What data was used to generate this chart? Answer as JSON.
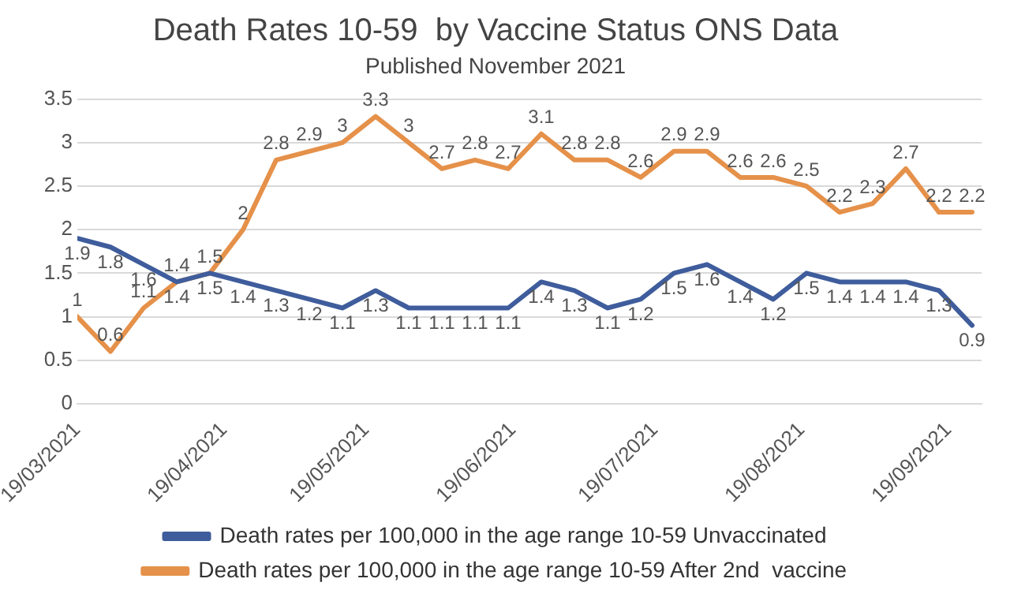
{
  "chart_data": {
    "type": "line",
    "title": "Death Rates 10-59  by Vaccine Status ONS Data",
    "subtitle": "Published November 2021",
    "x": [
      "2021-03-19",
      "2021-03-26",
      "2021-04-02",
      "2021-04-09",
      "2021-04-16",
      "2021-04-23",
      "2021-04-30",
      "2021-05-07",
      "2021-05-14",
      "2021-05-21",
      "2021-05-28",
      "2021-06-04",
      "2021-06-11",
      "2021-06-18",
      "2021-06-25",
      "2021-07-02",
      "2021-07-09",
      "2021-07-16",
      "2021-07-23",
      "2021-07-30",
      "2021-08-06",
      "2021-08-13",
      "2021-08-20",
      "2021-08-27",
      "2021-09-03",
      "2021-09-10",
      "2021-09-17",
      "2021-09-24"
    ],
    "series": [
      {
        "name": "Death rates per 100,000 in the age range 10-59 Unvaccinated",
        "color": "#3f5d9c",
        "values": [
          1.9,
          1.8,
          1.6,
          1.4,
          1.5,
          1.4,
          1.3,
          1.2,
          1.1,
          1.3,
          1.1,
          1.1,
          1.1,
          1.1,
          1.4,
          1.3,
          1.1,
          1.2,
          1.5,
          1.6,
          1.4,
          1.2,
          1.5,
          1.4,
          1.4,
          1.4,
          1.3,
          0.9
        ]
      },
      {
        "name": "Death rates per 100,000 in the age range 10-59 After 2nd  vaccine",
        "color": "#e5914a",
        "values": [
          1,
          0.6,
          1.1,
          1.4,
          1.5,
          2,
          2.8,
          2.9,
          3,
          3.3,
          3,
          2.7,
          2.8,
          2.7,
          3.1,
          2.8,
          2.8,
          2.6,
          2.9,
          2.9,
          2.6,
          2.6,
          2.5,
          2.2,
          2.3,
          2.7,
          2.2,
          2.2
        ]
      }
    ],
    "xlim": [
      "2021-03-19",
      "2021-09-26"
    ],
    "xticks": [
      {
        "value": "2021-03-19",
        "label": "19/03/2021"
      },
      {
        "value": "2021-04-19",
        "label": "19/04/2021"
      },
      {
        "value": "2021-05-19",
        "label": "19/05/2021"
      },
      {
        "value": "2021-06-19",
        "label": "19/06/2021"
      },
      {
        "value": "2021-07-19",
        "label": "19/07/2021"
      },
      {
        "value": "2021-08-19",
        "label": "19/08/2021"
      },
      {
        "value": "2021-09-19",
        "label": "19/09/2021"
      }
    ],
    "ylim": [
      0,
      3.5
    ],
    "yticks": [
      0,
      0.5,
      1,
      1.5,
      2,
      2.5,
      3,
      3.5
    ],
    "grid": "y",
    "legend": "bottom",
    "data_labels": true,
    "marker": "none",
    "line_style": "solid"
  }
}
